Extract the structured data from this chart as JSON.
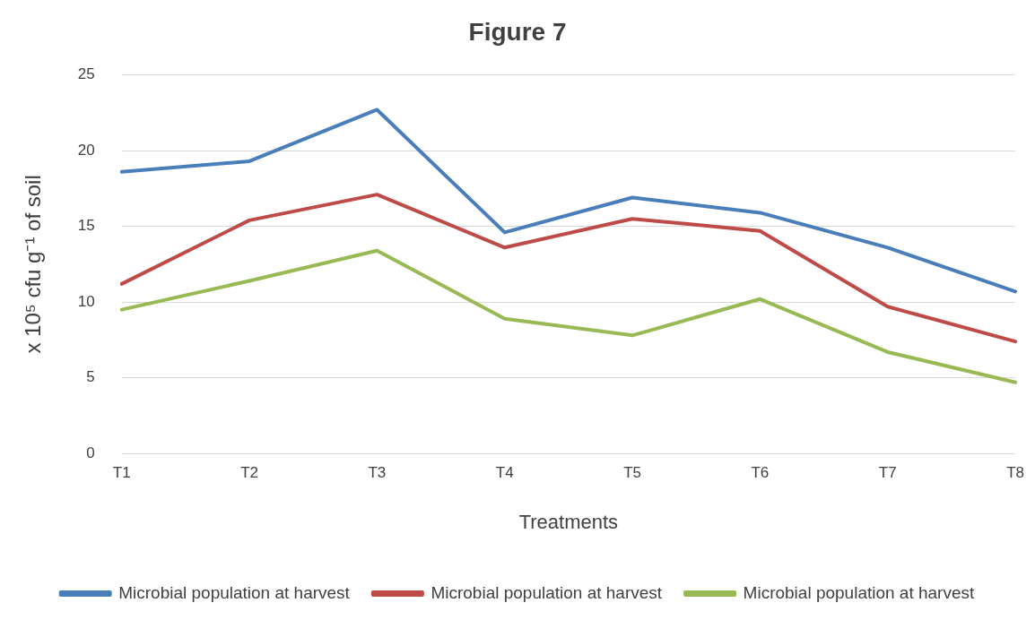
{
  "chart_data": {
    "type": "line",
    "title": "Figure 7",
    "xlabel": "Treatments",
    "ylabel": "x 10⁵ cfu g⁻¹ of soil",
    "categories": [
      "T1",
      "T2",
      "T3",
      "T4",
      "T5",
      "T6",
      "T7",
      "T8"
    ],
    "series": [
      {
        "name": "Microbial population at harvest",
        "color": "#4a7ebb",
        "values": [
          18.6,
          19.3,
          22.7,
          14.6,
          16.9,
          15.9,
          13.6,
          10.7
        ]
      },
      {
        "name": "Microbial population at harvest",
        "color": "#be4b48",
        "values": [
          11.2,
          15.4,
          17.1,
          13.6,
          15.5,
          14.7,
          9.7,
          7.4
        ]
      },
      {
        "name": "Microbial population at harvest",
        "color": "#98b954",
        "values": [
          9.5,
          11.4,
          13.4,
          8.9,
          7.8,
          10.2,
          6.7,
          4.7
        ]
      }
    ],
    "ylim": [
      0,
      25
    ],
    "yticks": [
      0,
      5,
      10,
      15,
      20,
      25
    ],
    "grid": "y",
    "legend": "bottom",
    "marker": "none",
    "line_style": "solid"
  }
}
